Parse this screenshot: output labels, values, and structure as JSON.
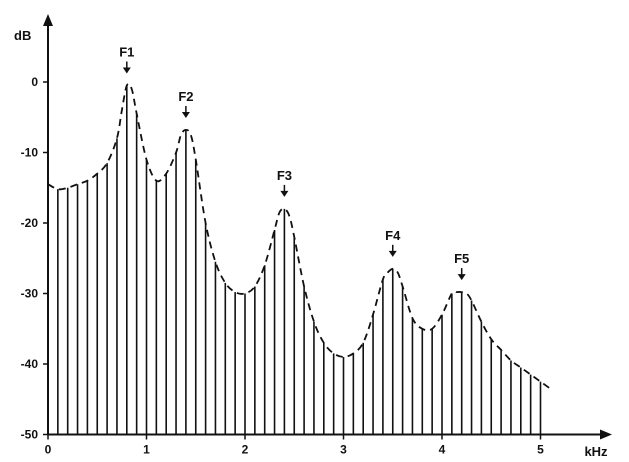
{
  "chart_data": {
    "type": "bar",
    "title": "",
    "xlabel": "kHz",
    "ylabel": "dB",
    "xlim": [
      0,
      5.8
    ],
    "ylim": [
      -50,
      5
    ],
    "x_ticks": [
      "0",
      "1",
      "2",
      "3",
      "4",
      "5"
    ],
    "y_ticks": [
      "0",
      "-10",
      "-20",
      "-30",
      "-40",
      "-50"
    ],
    "harmonic_spacing_khz": 0.1,
    "series": [
      {
        "type": "bar",
        "x": [
          0.1,
          0.2,
          0.3,
          0.4,
          0.5,
          0.6,
          0.7,
          0.8,
          0.9,
          1.0,
          1.1,
          1.2,
          1.3,
          1.4,
          1.5,
          1.6,
          1.7,
          1.8,
          1.9,
          2.0,
          2.1,
          2.2,
          2.3,
          2.4,
          2.5,
          2.6,
          2.7,
          2.8,
          2.9,
          3.0,
          3.1,
          3.2,
          3.3,
          3.4,
          3.5,
          3.6,
          3.7,
          3.8,
          3.9,
          4.0,
          4.1,
          4.2,
          4.3,
          4.4,
          4.5,
          4.6,
          4.7,
          4.8,
          4.9,
          5.0
        ],
        "values": [
          -15.2,
          -15.0,
          -14.5,
          -14.0,
          -13.0,
          -11.5,
          -8.0,
          -0.5,
          -4.5,
          -11.0,
          -14.0,
          -13.0,
          -10.0,
          -6.8,
          -11.0,
          -20.0,
          -25.5,
          -28.5,
          -29.8,
          -30.0,
          -29.0,
          -26.0,
          -21.0,
          -18.0,
          -22.0,
          -29.0,
          -34.0,
          -37.0,
          -38.5,
          -39.0,
          -38.5,
          -37.0,
          -33.0,
          -28.0,
          -26.5,
          -29.0,
          -33.5,
          -35.0,
          -35.0,
          -33.0,
          -30.0,
          -29.8,
          -31.0,
          -34.0,
          -36.5,
          -38.0,
          -39.5,
          -40.5,
          -41.5,
          -42.5
        ]
      },
      {
        "type": "line",
        "style": "dashed",
        "x": [
          0,
          0.1,
          0.2,
          0.3,
          0.4,
          0.5,
          0.6,
          0.7,
          0.75,
          0.8,
          0.85,
          0.9,
          1.0,
          1.1,
          1.2,
          1.3,
          1.35,
          1.4,
          1.45,
          1.5,
          1.6,
          1.7,
          1.8,
          1.9,
          2.0,
          2.1,
          2.2,
          2.3,
          2.35,
          2.4,
          2.45,
          2.5,
          2.6,
          2.7,
          2.8,
          2.9,
          3.0,
          3.1,
          3.2,
          3.3,
          3.4,
          3.45,
          3.5,
          3.55,
          3.6,
          3.7,
          3.8,
          3.9,
          4.0,
          4.1,
          4.15,
          4.2,
          4.25,
          4.3,
          4.4,
          4.5,
          4.6,
          4.7,
          4.8,
          4.9,
          5.0,
          5.1
        ],
        "values": [
          -14.5,
          -15.2,
          -15.0,
          -14.5,
          -14.0,
          -13.0,
          -11.5,
          -8.0,
          -4.0,
          -0.5,
          -1.0,
          -4.5,
          -11.0,
          -14.0,
          -13.0,
          -10.0,
          -7.5,
          -6.8,
          -7.5,
          -11.0,
          -20.0,
          -25.5,
          -28.5,
          -29.8,
          -30.0,
          -29.0,
          -26.0,
          -21.0,
          -18.5,
          -18.0,
          -19.0,
          -22.0,
          -29.0,
          -34.0,
          -37.0,
          -38.5,
          -39.0,
          -38.5,
          -37.0,
          -33.0,
          -28.0,
          -27.0,
          -26.5,
          -27.0,
          -29.0,
          -33.5,
          -35.0,
          -35.0,
          -33.0,
          -30.0,
          -29.8,
          -29.8,
          -30.0,
          -31.0,
          -34.0,
          -36.5,
          -38.0,
          -39.5,
          -40.5,
          -41.5,
          -42.5,
          -43.5
        ]
      }
    ],
    "annotations": [
      {
        "label": "F1",
        "x": 0.8,
        "y": -0.5
      },
      {
        "label": "F2",
        "x": 1.4,
        "y": -6.8
      },
      {
        "label": "F3",
        "x": 2.4,
        "y": -18.0
      },
      {
        "label": "F4",
        "x": 3.5,
        "y": -26.5
      },
      {
        "label": "F5",
        "x": 4.2,
        "y": -29.8
      }
    ],
    "grid": false,
    "legend": "none"
  }
}
